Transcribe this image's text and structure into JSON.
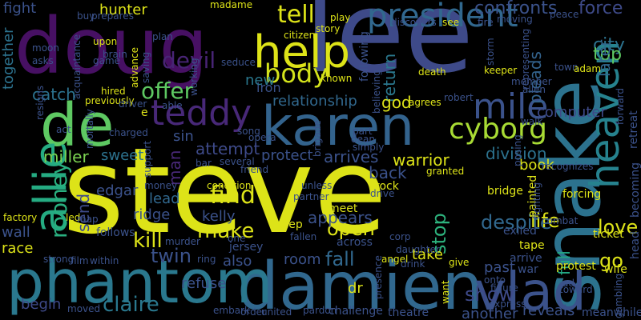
{
  "words": [
    {
      "text": "steve",
      "color": "#dde318"
    },
    {
      "text": "lee",
      "color": "#3e4a89"
    },
    {
      "text": "doug",
      "color": "#471063"
    },
    {
      "text": "snake",
      "color": "#2c728e"
    },
    {
      "text": "damien",
      "color": "#31688e"
    },
    {
      "text": "phantom",
      "color": "#2a788e"
    },
    {
      "text": "vlad",
      "color": "#3b528b"
    },
    {
      "text": "karen",
      "color": "#33638d"
    },
    {
      "text": "de",
      "color": "#5ec962"
    },
    {
      "text": "help",
      "color": "#dde318"
    },
    {
      "text": "allie",
      "color": "#25ab82"
    },
    {
      "text": "heaven",
      "color": "#26828e"
    },
    {
      "text": "president",
      "color": "#31688e"
    },
    {
      "text": "teddy",
      "color": "#482878"
    },
    {
      "text": "mile",
      "color": "#3b528b"
    },
    {
      "text": "cyborg",
      "color": "#a8db34"
    },
    {
      "text": "body",
      "color": "#d2e21b"
    },
    {
      "text": "tell",
      "color": "#dde318"
    },
    {
      "text": "devil",
      "color": "#482475"
    },
    {
      "text": "offer",
      "color": "#5ec962"
    },
    {
      "text": "rooney",
      "color": "#29af7f"
    },
    {
      "text": "find",
      "color": "#dde318"
    },
    {
      "text": "claire",
      "color": "#2a788e"
    },
    {
      "text": "kill",
      "color": "#dde318"
    },
    {
      "text": "make",
      "color": "#dde318"
    },
    {
      "text": "twin",
      "color": "#3b528b"
    },
    {
      "text": "fall",
      "color": "#31688e"
    },
    {
      "text": "open",
      "color": "#dde318"
    },
    {
      "text": "stop",
      "color": "#2db27d"
    },
    {
      "text": "show",
      "color": "#3e4a89"
    },
    {
      "text": "despite",
      "color": "#31688e"
    },
    {
      "text": "love",
      "color": "#dde318"
    },
    {
      "text": "life",
      "color": "#dde318"
    },
    {
      "text": "go",
      "color": "#dde318"
    },
    {
      "text": "pleads",
      "color": "#33638d"
    },
    {
      "text": "return",
      "color": "#2a788e"
    },
    {
      "text": "following",
      "color": "#3b528b"
    },
    {
      "text": "force",
      "color": "#3e4a89"
    },
    {
      "text": "city",
      "color": "#2c728e"
    },
    {
      "text": "top",
      "color": "#5ec962"
    },
    {
      "text": "later",
      "color": "#31688e"
    },
    {
      "text": "confronts",
      "color": "#3b528b"
    },
    {
      "text": "god",
      "color": "#dde318"
    },
    {
      "text": "relationship",
      "color": "#31688e"
    },
    {
      "text": "new",
      "color": "#2a788e"
    },
    {
      "text": "hunter",
      "color": "#dde318"
    },
    {
      "text": "fight",
      "color": "#3b528b"
    },
    {
      "text": "together",
      "color": "#2c728e"
    },
    {
      "text": "catch",
      "color": "#2c728e"
    },
    {
      "text": "attempt",
      "color": "#3e4a89"
    },
    {
      "text": "protect",
      "color": "#3b528b"
    },
    {
      "text": "arrives",
      "color": "#3b528b"
    },
    {
      "text": "warrior",
      "color": "#dde318"
    },
    {
      "text": "back",
      "color": "#3b528b"
    },
    {
      "text": "division",
      "color": "#2c728e"
    },
    {
      "text": "book",
      "color": "#dde318"
    },
    {
      "text": "sweet",
      "color": "#2c728e"
    },
    {
      "text": "miller",
      "color": "#7ad151"
    },
    {
      "text": "edgar",
      "color": "#3b528b"
    },
    {
      "text": "send",
      "color": "#3e4a89"
    },
    {
      "text": "lead",
      "color": "#31688e"
    },
    {
      "text": "ridge",
      "color": "#3b528b"
    },
    {
      "text": "appears",
      "color": "#3b528b"
    },
    {
      "text": "kelly",
      "color": "#3b528b"
    },
    {
      "text": "man",
      "color": "#482878"
    },
    {
      "text": "sin",
      "color": "#3b528b"
    },
    {
      "text": "iron",
      "color": "#3b528b"
    },
    {
      "text": "computer",
      "color": "#3e4a89"
    },
    {
      "text": "full",
      "color": "#22a884"
    },
    {
      "text": "wall",
      "color": "#3b528b"
    },
    {
      "text": "race",
      "color": "#dde318"
    },
    {
      "text": "begin",
      "color": "#3e4a89"
    },
    {
      "text": "refuse",
      "color": "#3b528b"
    },
    {
      "text": "also",
      "color": "#3b528b"
    },
    {
      "text": "room",
      "color": "#3b528b"
    },
    {
      "text": "take",
      "color": "#dde318"
    },
    {
      "text": "past",
      "color": "#3b528b"
    },
    {
      "text": "another",
      "color": "#3b528b"
    },
    {
      "text": "reveals",
      "color": "#3b528b"
    },
    {
      "text": "dr",
      "color": "#dde318"
    },
    {
      "text": "bridge",
      "color": "#dde318"
    },
    {
      "text": "forcing",
      "color": "#dde318"
    },
    {
      "text": "upon",
      "color": "#dde318"
    },
    {
      "text": "plan",
      "color": "#3b528b"
    },
    {
      "text": "madame",
      "color": "#dde318"
    },
    {
      "text": "citizen",
      "color": "#dde318"
    },
    {
      "text": "story",
      "color": "#dde318"
    },
    {
      "text": "play",
      "color": "#dde318"
    },
    {
      "text": "discovers",
      "color": "#3b528b"
    },
    {
      "text": "see",
      "color": "#dde318"
    },
    {
      "text": "fire",
      "color": "#3b528b"
    },
    {
      "text": "moving",
      "color": "#3b528b"
    },
    {
      "text": "death",
      "color": "#dde318"
    },
    {
      "text": "keeper",
      "color": "#dde318"
    },
    {
      "text": "allen",
      "color": "#3b528b"
    },
    {
      "text": "agrees",
      "color": "#dde318"
    },
    {
      "text": "known",
      "color": "#dde318"
    },
    {
      "text": "town",
      "color": "#3b528b"
    },
    {
      "text": "adam",
      "color": "#dde318"
    },
    {
      "text": "hired",
      "color": "#dde318"
    },
    {
      "text": "buy",
      "color": "#3b528b"
    },
    {
      "text": "prepares",
      "color": "#3b528b"
    },
    {
      "text": "advance",
      "color": "#dde318"
    },
    {
      "text": "working",
      "color": "#3b528b"
    },
    {
      "text": "brain",
      "color": "#3b528b"
    },
    {
      "text": "game",
      "color": "#3b528b"
    },
    {
      "text": "asks",
      "color": "#3b528b"
    },
    {
      "text": "moon",
      "color": "#3b528b"
    },
    {
      "text": "saving",
      "color": "#3b528b"
    },
    {
      "text": "previously",
      "color": "#dde318"
    },
    {
      "text": "driver",
      "color": "#3b528b"
    },
    {
      "text": "able",
      "color": "#3b528b"
    },
    {
      "text": "robert",
      "color": "#3b528b"
    },
    {
      "text": "part",
      "color": "#3b528b"
    },
    {
      "text": "dean",
      "color": "#3b528b"
    },
    {
      "text": "simply",
      "color": "#3b528b"
    },
    {
      "text": "walk",
      "color": "#3b528b"
    },
    {
      "text": "song",
      "color": "#3b528b"
    },
    {
      "text": "opera",
      "color": "#3b528b"
    },
    {
      "text": "brigade",
      "color": "#3b528b"
    },
    {
      "text": "charged",
      "color": "#3b528b"
    },
    {
      "text": "support",
      "color": "#3b528b"
    },
    {
      "text": "bar",
      "color": "#3b528b"
    },
    {
      "text": "several",
      "color": "#3b528b"
    },
    {
      "text": "friend",
      "color": "#3b528b"
    },
    {
      "text": "money",
      "color": "#3b528b"
    },
    {
      "text": "condition",
      "color": "#dde318"
    },
    {
      "text": "unless",
      "color": "#3b528b"
    },
    {
      "text": "partner",
      "color": "#3b528b"
    },
    {
      "text": "rock",
      "color": "#dde318"
    },
    {
      "text": "drive",
      "color": "#3b528b"
    },
    {
      "text": "granted",
      "color": "#dde318"
    },
    {
      "text": "meet",
      "color": "#dde318"
    },
    {
      "text": "keep",
      "color": "#dde318"
    },
    {
      "text": "fallen",
      "color": "#3b528b"
    },
    {
      "text": "across",
      "color": "#3b528b"
    },
    {
      "text": "corp",
      "color": "#3b528b"
    },
    {
      "text": "daughter",
      "color": "#3b528b"
    },
    {
      "text": "jersey",
      "color": "#3b528b"
    },
    {
      "text": "ring",
      "color": "#3b528b"
    },
    {
      "text": "angel",
      "color": "#dde318"
    },
    {
      "text": "drink",
      "color": "#3b528b"
    },
    {
      "text": "give",
      "color": "#dde318"
    },
    {
      "text": "onto",
      "color": "#3b528b"
    },
    {
      "text": "figure",
      "color": "#3b528b"
    },
    {
      "text": "express",
      "color": "#3b528b"
    },
    {
      "text": "presence",
      "color": "#3b528b"
    },
    {
      "text": "theatre",
      "color": "#3b528b"
    },
    {
      "text": "challenge",
      "color": "#3b528b"
    },
    {
      "text": "pardon",
      "color": "#3b528b"
    },
    {
      "text": "order",
      "color": "#3b528b"
    },
    {
      "text": "united",
      "color": "#3b528b"
    },
    {
      "text": "embark",
      "color": "#3b528b"
    },
    {
      "text": "moved",
      "color": "#3b528b"
    },
    {
      "text": "strong",
      "color": "#3b528b"
    },
    {
      "text": "film",
      "color": "#3b528b"
    },
    {
      "text": "within",
      "color": "#3b528b"
    },
    {
      "text": "follows",
      "color": "#3b528b"
    },
    {
      "text": "murder",
      "color": "#3b528b"
    },
    {
      "text": "factory",
      "color": "#dde318"
    },
    {
      "text": "led",
      "color": "#dde318"
    },
    {
      "text": "map",
      "color": "#3b528b"
    },
    {
      "text": "act",
      "color": "#3b528b"
    },
    {
      "text": "resigns",
      "color": "#3b528b"
    },
    {
      "text": "mortally",
      "color": "#3b528b"
    },
    {
      "text": "seduce",
      "color": "#3b528b"
    },
    {
      "text": "one",
      "color": "#3b528b"
    },
    {
      "text": "ticket",
      "color": "#dde318"
    },
    {
      "text": "exiled",
      "color": "#3b528b"
    },
    {
      "text": "combat",
      "color": "#3b528b"
    },
    {
      "text": "tape",
      "color": "#dde318"
    },
    {
      "text": "arrive",
      "color": "#3b528b"
    },
    {
      "text": "war",
      "color": "#3b528b"
    },
    {
      "text": "protest",
      "color": "#dde318"
    },
    {
      "text": "toward",
      "color": "#3b528b"
    },
    {
      "text": "wife",
      "color": "#dde318"
    },
    {
      "text": "head",
      "color": "#3b528b"
    },
    {
      "text": "gambling",
      "color": "#3b528b"
    },
    {
      "text": "meanwhile",
      "color": "#3b528b"
    },
    {
      "text": "retreat",
      "color": "#3b528b"
    },
    {
      "text": "becoming",
      "color": "#3b528b"
    },
    {
      "text": "recognizes",
      "color": "#3b528b"
    },
    {
      "text": "posing",
      "color": "#3b528b"
    },
    {
      "text": "painted",
      "color": "#dde318"
    },
    {
      "text": "fighting",
      "color": "#3b528b"
    },
    {
      "text": "storm",
      "color": "#3b528b"
    },
    {
      "text": "believing",
      "color": "#3b528b"
    },
    {
      "text": "peace",
      "color": "#3b528b"
    },
    {
      "text": "e",
      "color": "#dde318"
    },
    {
      "text": "ad",
      "color": "#3b528b"
    },
    {
      "text": "forward",
      "color": "#3b528b"
    },
    {
      "text": "representing",
      "color": "#3b528b"
    },
    {
      "text": "acquaintance",
      "color": "#3b528b"
    },
    {
      "text": "member",
      "color": "#3b528b"
    },
    {
      "text": "want",
      "color": "#dde318"
    }
  ]
}
